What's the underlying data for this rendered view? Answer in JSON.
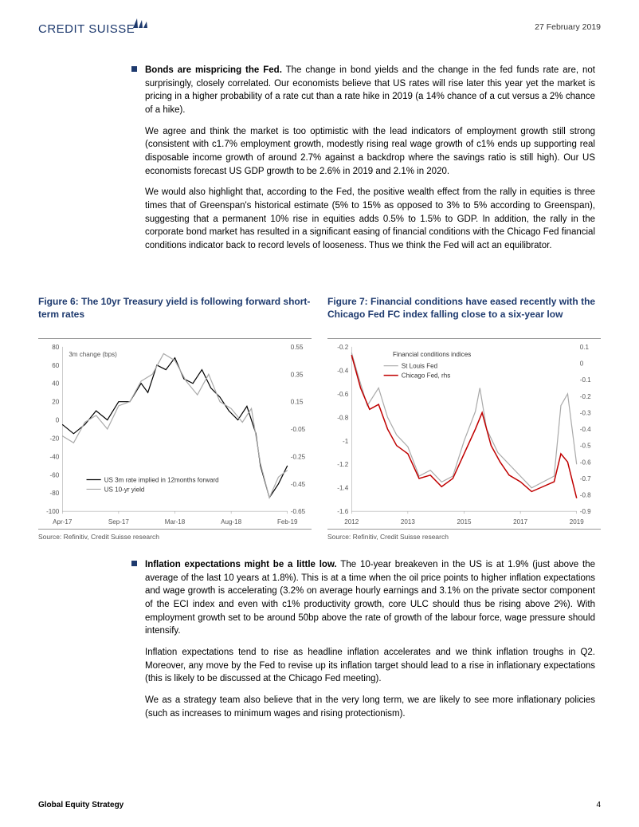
{
  "header": {
    "brand": "CREDIT SUISSE",
    "date": "27 February 2019"
  },
  "body": {
    "bullet1_bold": "Bonds are mispricing the Fed.",
    "bullet1_rest": " The change in bond yields and the change in the fed funds rate are, not surprisingly, closely correlated. Our economists believe that US rates will rise later this year yet the market is pricing in a higher probability of a rate cut than a rate hike in 2019 (a 14% chance of a cut versus a 2% chance of a hike).",
    "para2": "We agree and think the market is too optimistic with the lead indicators of employment growth still strong (consistent with c1.7% employment growth, modestly rising real wage growth of c1% ends up supporting real disposable income growth of around 2.7% against a backdrop where the savings ratio is still high). Our US economists forecast US GDP growth to be 2.6% in 2019 and 2.1% in 2020.",
    "para3": "We would also highlight that, according to the Fed, the positive wealth effect from the rally in equities is three times that of Greenspan's historical estimate (5% to 15% as opposed to 3% to 5% according to Greenspan), suggesting that a permanent 10% rise in equities adds 0.5% to 1.5% to GDP. In addition, the rally in the corporate bond market has resulted in a significant easing of financial conditions with the Chicago Fed financial conditions indicator back to record levels of looseness. Thus we think the Fed will act an equilibrator.",
    "bullet2_bold": "Inflation expectations might be a little low.",
    "bullet2_rest": " The 10-year breakeven in the US is at 1.9% (just above the average of the last 10 years at 1.8%). This is at a time when the oil price points to higher inflation expectations and wage growth is accelerating (3.2% on average hourly earnings and 3.1% on the private sector component of the ECI index and even with c1% productivity growth, core ULC should thus be rising above 2%). With employment growth set to be around 50bp above the rate of growth of the labour force, wage pressure should intensify.",
    "para5": "Inflation expectations tend to rise as headline inflation accelerates and we think inflation troughs in Q2. Moreover, any move by the Fed to revise up its inflation target should lead to a rise in inflationary expectations (this is likely to be discussed at the Chicago Fed meeting).",
    "para6": "We as a strategy team also believe that in the very long term, we are likely to see more inflationary policies (such as increases to minimum wages and rising protectionism)."
  },
  "figure6": {
    "title": "Figure 6: The 10yr Treasury yield is following forward short-term rates",
    "source": "Source: Refinitiv, Credit Suisse research",
    "type": "line",
    "note": "3m change (bps)",
    "left_axis": {
      "min": -100,
      "max": 80,
      "step": 20,
      "ticks": [
        -100,
        -80,
        -60,
        -40,
        -20,
        0,
        20,
        40,
        60,
        80
      ]
    },
    "right_axis": {
      "min": -0.65,
      "max": 0.55,
      "step": 0.2,
      "ticks": [
        -0.65,
        -0.45,
        -0.25,
        -0.05,
        0.15,
        0.35,
        0.55
      ]
    },
    "x_labels": [
      "Apr-17",
      "Sep-17",
      "Mar-18",
      "Aug-18",
      "Feb-19"
    ],
    "background_color": "#ffffff",
    "series": [
      {
        "name": "US 3m rate implied in 12months forward",
        "color": "#000000",
        "width": 1.2,
        "points": [
          [
            0,
            -5
          ],
          [
            5,
            -15
          ],
          [
            10,
            -5
          ],
          [
            15,
            10
          ],
          [
            20,
            0
          ],
          [
            25,
            20
          ],
          [
            30,
            20
          ],
          [
            35,
            40
          ],
          [
            38,
            30
          ],
          [
            42,
            60
          ],
          [
            46,
            55
          ],
          [
            50,
            68
          ],
          [
            54,
            45
          ],
          [
            58,
            40
          ],
          [
            62,
            55
          ],
          [
            66,
            35
          ],
          [
            70,
            25
          ],
          [
            74,
            10
          ],
          [
            78,
            0
          ],
          [
            82,
            15
          ],
          [
            86,
            -15
          ],
          [
            88,
            -50
          ],
          [
            92,
            -85
          ],
          [
            96,
            -70
          ],
          [
            100,
            -50
          ]
        ]
      },
      {
        "name": "US 10-yr yield",
        "color": "#aaaaaa",
        "width": 1.2,
        "right_axis": true,
        "points": [
          [
            0,
            -0.1
          ],
          [
            5,
            -0.15
          ],
          [
            10,
            0.0
          ],
          [
            15,
            0.05
          ],
          [
            20,
            -0.05
          ],
          [
            25,
            0.12
          ],
          [
            30,
            0.15
          ],
          [
            35,
            0.3
          ],
          [
            40,
            0.35
          ],
          [
            45,
            0.5
          ],
          [
            50,
            0.45
          ],
          [
            55,
            0.3
          ],
          [
            60,
            0.2
          ],
          [
            65,
            0.35
          ],
          [
            70,
            0.15
          ],
          [
            75,
            0.1
          ],
          [
            80,
            0.0
          ],
          [
            84,
            0.1
          ],
          [
            88,
            -0.3
          ],
          [
            92,
            -0.55
          ],
          [
            96,
            -0.4
          ],
          [
            100,
            -0.35
          ]
        ]
      }
    ]
  },
  "figure7": {
    "title": "Figure 7: Financial conditions have eased recently with the Chicago Fed FC index falling close to a six-year low",
    "source": "Source: Refinitiv, Credit Suisse research",
    "type": "line",
    "legend_title": "Financial conditions indices",
    "left_axis": {
      "min": -1.6,
      "max": -0.2,
      "step": 0.2,
      "ticks": [
        -1.6,
        -1.4,
        -1.2,
        -1.0,
        -0.8,
        -0.6,
        -0.4,
        -0.2
      ]
    },
    "right_axis": {
      "min": -0.9,
      "max": 0.1,
      "step": 0.1,
      "ticks": [
        -0.9,
        -0.8,
        -0.7,
        -0.6,
        -0.5,
        -0.4,
        -0.3,
        -0.2,
        -0.1,
        0.0,
        0.1
      ]
    },
    "x_labels": [
      "2012",
      "2013",
      "2015",
      "2017",
      "2019"
    ],
    "background_color": "#ffffff",
    "series": [
      {
        "name": "St Louis Fed",
        "color": "#aaaaaa",
        "width": 1.2,
        "points": [
          [
            0,
            -0.25
          ],
          [
            3,
            -0.45
          ],
          [
            7,
            -0.7
          ],
          [
            12,
            -0.55
          ],
          [
            16,
            -0.8
          ],
          [
            20,
            -0.95
          ],
          [
            25,
            -1.05
          ],
          [
            30,
            -1.3
          ],
          [
            35,
            -1.25
          ],
          [
            40,
            -1.35
          ],
          [
            45,
            -1.3
          ],
          [
            50,
            -1.0
          ],
          [
            55,
            -0.75
          ],
          [
            57,
            -0.55
          ],
          [
            60,
            -0.9
          ],
          [
            65,
            -1.1
          ],
          [
            70,
            -1.2
          ],
          [
            75,
            -1.3
          ],
          [
            80,
            -1.4
          ],
          [
            85,
            -1.35
          ],
          [
            90,
            -1.3
          ],
          [
            93,
            -0.7
          ],
          [
            96,
            -0.6
          ],
          [
            100,
            -1.2
          ]
        ]
      },
      {
        "name": "Chicago Fed, rhs",
        "color": "#c00000",
        "width": 1.5,
        "right_axis": true,
        "points": [
          [
            0,
            0.05
          ],
          [
            4,
            -0.15
          ],
          [
            8,
            -0.28
          ],
          [
            12,
            -0.25
          ],
          [
            16,
            -0.4
          ],
          [
            20,
            -0.5
          ],
          [
            25,
            -0.55
          ],
          [
            30,
            -0.7
          ],
          [
            35,
            -0.68
          ],
          [
            40,
            -0.75
          ],
          [
            45,
            -0.7
          ],
          [
            50,
            -0.55
          ],
          [
            55,
            -0.4
          ],
          [
            58,
            -0.3
          ],
          [
            62,
            -0.5
          ],
          [
            66,
            -0.6
          ],
          [
            70,
            -0.68
          ],
          [
            75,
            -0.72
          ],
          [
            80,
            -0.78
          ],
          [
            85,
            -0.75
          ],
          [
            90,
            -0.72
          ],
          [
            93,
            -0.55
          ],
          [
            96,
            -0.6
          ],
          [
            100,
            -0.82
          ]
        ]
      }
    ]
  },
  "footer": {
    "left": "Global Equity Strategy",
    "page": "4"
  }
}
